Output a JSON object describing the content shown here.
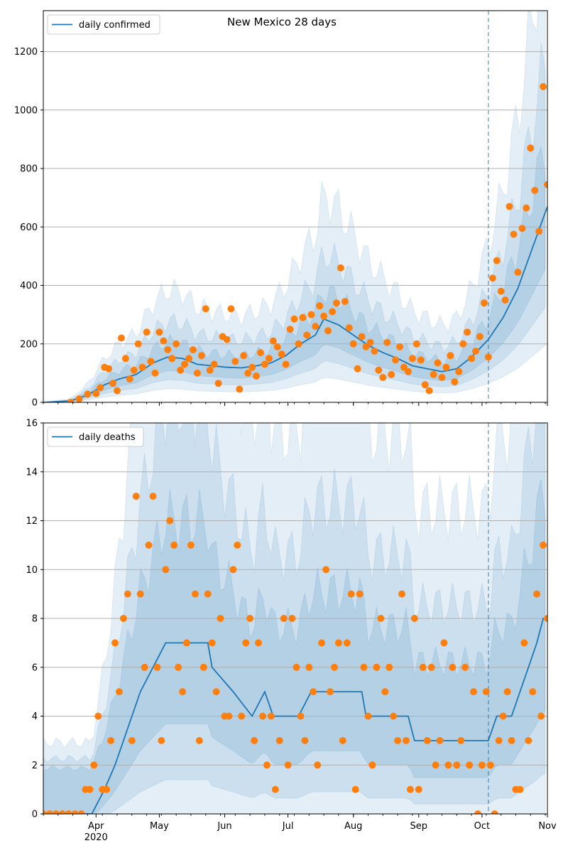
{
  "title": "New Mexico 28 days",
  "colors": {
    "line": "#1f77b4",
    "points": "#ff7f0e",
    "band": "#1f77b4",
    "grid": "#b0b0b0",
    "vline": "#1f77b4"
  },
  "x_axis": {
    "start": "2020-03-07",
    "end": "2020-11-01",
    "tick_labels": [
      "Apr",
      "May",
      "Jun",
      "Jul",
      "Aug",
      "Sep",
      "Oct",
      "Nov"
    ],
    "tick_dates": [
      "2020-04-01",
      "2020-05-01",
      "2020-06-01",
      "2020-07-01",
      "2020-08-01",
      "2020-09-01",
      "2020-10-01",
      "2020-11-01"
    ],
    "year_label": "2020",
    "forecast_start": "2020-10-04"
  },
  "chart_data": [
    {
      "type": "line",
      "legend": "daily confirmed",
      "legend_position": "upper-left",
      "ylim": [
        0,
        1340
      ],
      "yticks": [
        0,
        200,
        400,
        600,
        800,
        1000,
        1200
      ],
      "grid": "horizontal",
      "median": [
        [
          "2020-03-07",
          0
        ],
        [
          "2020-03-20",
          5
        ],
        [
          "2020-03-28",
          25
        ],
        [
          "2020-04-05",
          60
        ],
        [
          "2020-04-12",
          80
        ],
        [
          "2020-04-20",
          95
        ],
        [
          "2020-04-28",
          135
        ],
        [
          "2020-05-05",
          155
        ],
        [
          "2020-05-12",
          150
        ],
        [
          "2020-05-19",
          130
        ],
        [
          "2020-05-26",
          125
        ],
        [
          "2020-06-02",
          120
        ],
        [
          "2020-06-09",
          118
        ],
        [
          "2020-06-16",
          125
        ],
        [
          "2020-06-23",
          135
        ],
        [
          "2020-06-30",
          160
        ],
        [
          "2020-07-07",
          200
        ],
        [
          "2020-07-14",
          230
        ],
        [
          "2020-07-18",
          285
        ],
        [
          "2020-07-25",
          265
        ],
        [
          "2020-08-01",
          230
        ],
        [
          "2020-08-08",
          195
        ],
        [
          "2020-08-15",
          170
        ],
        [
          "2020-08-22",
          150
        ],
        [
          "2020-08-29",
          125
        ],
        [
          "2020-09-05",
          115
        ],
        [
          "2020-09-12",
          105
        ],
        [
          "2020-09-19",
          115
        ],
        [
          "2020-09-26",
          155
        ],
        [
          "2020-10-04",
          215
        ],
        [
          "2020-10-11",
          290
        ],
        [
          "2020-10-18",
          390
        ],
        [
          "2020-10-25",
          530
        ],
        [
          "2020-11-01",
          670
        ]
      ],
      "points": [
        [
          "2020-03-20",
          0
        ],
        [
          "2020-03-24",
          12
        ],
        [
          "2020-03-28",
          28
        ],
        [
          "2020-04-01",
          30
        ],
        [
          "2020-04-03",
          50
        ],
        [
          "2020-04-05",
          120
        ],
        [
          "2020-04-07",
          115
        ],
        [
          "2020-04-09",
          65
        ],
        [
          "2020-04-11",
          40
        ],
        [
          "2020-04-13",
          220
        ],
        [
          "2020-04-15",
          150
        ],
        [
          "2020-04-17",
          80
        ],
        [
          "2020-04-19",
          110
        ],
        [
          "2020-04-21",
          200
        ],
        [
          "2020-04-23",
          120
        ],
        [
          "2020-04-25",
          240
        ],
        [
          "2020-04-27",
          140
        ],
        [
          "2020-04-29",
          100
        ],
        [
          "2020-05-01",
          240
        ],
        [
          "2020-05-03",
          210
        ],
        [
          "2020-05-05",
          180
        ],
        [
          "2020-05-07",
          150
        ],
        [
          "2020-05-09",
          200
        ],
        [
          "2020-05-11",
          110
        ],
        [
          "2020-05-13",
          130
        ],
        [
          "2020-05-15",
          150
        ],
        [
          "2020-05-17",
          180
        ],
        [
          "2020-05-19",
          100
        ],
        [
          "2020-05-21",
          160
        ],
        [
          "2020-05-23",
          320
        ],
        [
          "2020-05-25",
          110
        ],
        [
          "2020-05-27",
          130
        ],
        [
          "2020-05-29",
          65
        ],
        [
          "2020-05-31",
          225
        ],
        [
          "2020-06-02",
          215
        ],
        [
          "2020-06-04",
          320
        ],
        [
          "2020-06-06",
          140
        ],
        [
          "2020-06-08",
          45
        ],
        [
          "2020-06-10",
          160
        ],
        [
          "2020-06-12",
          100
        ],
        [
          "2020-06-14",
          120
        ],
        [
          "2020-06-16",
          90
        ],
        [
          "2020-06-18",
          170
        ],
        [
          "2020-06-20",
          130
        ],
        [
          "2020-06-22",
          150
        ],
        [
          "2020-06-24",
          210
        ],
        [
          "2020-06-26",
          190
        ],
        [
          "2020-06-28",
          165
        ],
        [
          "2020-06-30",
          130
        ],
        [
          "2020-07-02",
          250
        ],
        [
          "2020-07-04",
          285
        ],
        [
          "2020-07-06",
          200
        ],
        [
          "2020-07-08",
          290
        ],
        [
          "2020-07-10",
          230
        ],
        [
          "2020-07-12",
          300
        ],
        [
          "2020-07-14",
          260
        ],
        [
          "2020-07-16",
          330
        ],
        [
          "2020-07-18",
          295
        ],
        [
          "2020-07-20",
          245
        ],
        [
          "2020-07-22",
          310
        ],
        [
          "2020-07-24",
          340
        ],
        [
          "2020-07-26",
          460
        ],
        [
          "2020-07-28",
          345
        ],
        [
          "2020-07-30",
          255
        ],
        [
          "2020-08-01",
          200
        ],
        [
          "2020-08-03",
          115
        ],
        [
          "2020-08-05",
          225
        ],
        [
          "2020-08-07",
          190
        ],
        [
          "2020-08-09",
          205
        ],
        [
          "2020-08-11",
          175
        ],
        [
          "2020-08-13",
          110
        ],
        [
          "2020-08-15",
          85
        ],
        [
          "2020-08-17",
          205
        ],
        [
          "2020-08-19",
          95
        ],
        [
          "2020-08-21",
          145
        ],
        [
          "2020-08-23",
          190
        ],
        [
          "2020-08-25",
          120
        ],
        [
          "2020-08-27",
          105
        ],
        [
          "2020-08-29",
          150
        ],
        [
          "2020-08-31",
          200
        ],
        [
          "2020-09-02",
          145
        ],
        [
          "2020-09-04",
          60
        ],
        [
          "2020-09-06",
          40
        ],
        [
          "2020-09-08",
          95
        ],
        [
          "2020-09-10",
          135
        ],
        [
          "2020-09-12",
          85
        ],
        [
          "2020-09-14",
          120
        ],
        [
          "2020-09-16",
          160
        ],
        [
          "2020-09-18",
          70
        ],
        [
          "2020-09-20",
          105
        ],
        [
          "2020-09-22",
          200
        ],
        [
          "2020-09-24",
          240
        ],
        [
          "2020-09-26",
          150
        ],
        [
          "2020-09-28",
          175
        ],
        [
          "2020-09-30",
          225
        ],
        [
          "2020-10-02",
          340
        ],
        [
          "2020-10-04",
          155
        ],
        [
          "2020-10-06",
          425
        ],
        [
          "2020-10-08",
          485
        ],
        [
          "2020-10-10",
          380
        ],
        [
          "2020-10-12",
          350
        ],
        [
          "2020-10-14",
          670
        ],
        [
          "2020-10-16",
          575
        ],
        [
          "2020-10-18",
          445
        ],
        [
          "2020-10-20",
          595
        ],
        [
          "2020-10-22",
          665
        ],
        [
          "2020-10-24",
          870
        ],
        [
          "2020-10-26",
          725
        ],
        [
          "2020-10-28",
          585
        ],
        [
          "2020-10-30",
          1080
        ],
        [
          "2020-11-01",
          745
        ]
      ]
    },
    {
      "type": "line",
      "legend": "daily deaths",
      "legend_position": "upper-left",
      "ylim": [
        0,
        16
      ],
      "yticks": [
        0,
        2,
        4,
        6,
        8,
        10,
        12,
        14,
        16
      ],
      "grid": "horizontal",
      "median": [
        [
          "2020-03-07",
          0
        ],
        [
          "2020-03-30",
          0
        ],
        [
          "2020-04-05",
          1
        ],
        [
          "2020-04-10",
          2
        ],
        [
          "2020-04-14",
          3
        ],
        [
          "2020-04-18",
          4
        ],
        [
          "2020-04-22",
          5
        ],
        [
          "2020-04-28",
          6
        ],
        [
          "2020-05-04",
          7
        ],
        [
          "2020-05-24",
          7
        ],
        [
          "2020-05-26",
          6
        ],
        [
          "2020-06-05",
          5
        ],
        [
          "2020-06-14",
          4
        ],
        [
          "2020-06-20",
          5
        ],
        [
          "2020-06-24",
          4
        ],
        [
          "2020-07-06",
          4
        ],
        [
          "2020-07-12",
          5
        ],
        [
          "2020-07-19",
          5
        ],
        [
          "2020-08-05",
          5
        ],
        [
          "2020-08-07",
          4
        ],
        [
          "2020-08-27",
          4
        ],
        [
          "2020-08-30",
          3
        ],
        [
          "2020-10-04",
          3
        ],
        [
          "2020-10-08",
          4
        ],
        [
          "2020-10-15",
          4
        ],
        [
          "2020-10-19",
          5
        ],
        [
          "2020-10-23",
          6
        ],
        [
          "2020-10-27",
          7
        ],
        [
          "2020-10-30",
          8
        ],
        [
          "2020-11-01",
          8
        ]
      ],
      "points": [
        [
          "2020-03-07",
          0
        ],
        [
          "2020-03-10",
          0
        ],
        [
          "2020-03-13",
          0
        ],
        [
          "2020-03-16",
          0
        ],
        [
          "2020-03-19",
          0
        ],
        [
          "2020-03-22",
          0
        ],
        [
          "2020-03-25",
          0
        ],
        [
          "2020-03-27",
          1
        ],
        [
          "2020-03-29",
          1
        ],
        [
          "2020-03-31",
          2
        ],
        [
          "2020-04-02",
          4
        ],
        [
          "2020-04-04",
          1
        ],
        [
          "2020-04-06",
          1
        ],
        [
          "2020-04-08",
          3
        ],
        [
          "2020-04-10",
          7
        ],
        [
          "2020-04-12",
          5
        ],
        [
          "2020-04-14",
          8
        ],
        [
          "2020-04-16",
          9
        ],
        [
          "2020-04-18",
          3
        ],
        [
          "2020-04-20",
          13
        ],
        [
          "2020-04-22",
          9
        ],
        [
          "2020-04-24",
          6
        ],
        [
          "2020-04-26",
          11
        ],
        [
          "2020-04-28",
          13
        ],
        [
          "2020-04-30",
          6
        ],
        [
          "2020-05-02",
          3
        ],
        [
          "2020-05-04",
          10
        ],
        [
          "2020-05-06",
          12
        ],
        [
          "2020-05-08",
          11
        ],
        [
          "2020-05-10",
          6
        ],
        [
          "2020-05-12",
          5
        ],
        [
          "2020-05-14",
          7
        ],
        [
          "2020-05-16",
          11
        ],
        [
          "2020-05-18",
          9
        ],
        [
          "2020-05-20",
          3
        ],
        [
          "2020-05-22",
          6
        ],
        [
          "2020-05-24",
          9
        ],
        [
          "2020-05-26",
          7
        ],
        [
          "2020-05-28",
          5
        ],
        [
          "2020-05-30",
          8
        ],
        [
          "2020-06-01",
          4
        ],
        [
          "2020-06-03",
          4
        ],
        [
          "2020-06-05",
          10
        ],
        [
          "2020-06-07",
          11
        ],
        [
          "2020-06-09",
          4
        ],
        [
          "2020-06-11",
          7
        ],
        [
          "2020-06-13",
          8
        ],
        [
          "2020-06-15",
          3
        ],
        [
          "2020-06-17",
          7
        ],
        [
          "2020-06-19",
          4
        ],
        [
          "2020-06-21",
          2
        ],
        [
          "2020-06-23",
          4
        ],
        [
          "2020-06-25",
          1
        ],
        [
          "2020-06-27",
          3
        ],
        [
          "2020-06-29",
          8
        ],
        [
          "2020-07-01",
          2
        ],
        [
          "2020-07-03",
          8
        ],
        [
          "2020-07-05",
          6
        ],
        [
          "2020-07-07",
          4
        ],
        [
          "2020-07-09",
          3
        ],
        [
          "2020-07-11",
          6
        ],
        [
          "2020-07-13",
          5
        ],
        [
          "2020-07-15",
          2
        ],
        [
          "2020-07-17",
          7
        ],
        [
          "2020-07-19",
          10
        ],
        [
          "2020-07-21",
          5
        ],
        [
          "2020-07-23",
          6
        ],
        [
          "2020-07-25",
          7
        ],
        [
          "2020-07-27",
          3
        ],
        [
          "2020-07-29",
          7
        ],
        [
          "2020-07-31",
          9
        ],
        [
          "2020-08-02",
          1
        ],
        [
          "2020-08-04",
          9
        ],
        [
          "2020-08-06",
          6
        ],
        [
          "2020-08-08",
          4
        ],
        [
          "2020-08-10",
          2
        ],
        [
          "2020-08-12",
          6
        ],
        [
          "2020-08-14",
          8
        ],
        [
          "2020-08-16",
          5
        ],
        [
          "2020-08-18",
          6
        ],
        [
          "2020-08-20",
          4
        ],
        [
          "2020-08-22",
          3
        ],
        [
          "2020-08-24",
          9
        ],
        [
          "2020-08-26",
          3
        ],
        [
          "2020-08-28",
          1
        ],
        [
          "2020-08-30",
          8
        ],
        [
          "2020-09-01",
          1
        ],
        [
          "2020-09-03",
          6
        ],
        [
          "2020-09-05",
          3
        ],
        [
          "2020-09-07",
          6
        ],
        [
          "2020-09-09",
          2
        ],
        [
          "2020-09-11",
          3
        ],
        [
          "2020-09-13",
          7
        ],
        [
          "2020-09-15",
          2
        ],
        [
          "2020-09-17",
          6
        ],
        [
          "2020-09-19",
          2
        ],
        [
          "2020-09-21",
          3
        ],
        [
          "2020-09-23",
          6
        ],
        [
          "2020-09-25",
          2
        ],
        [
          "2020-09-27",
          5
        ],
        [
          "2020-09-29",
          0
        ],
        [
          "2020-10-01",
          2
        ],
        [
          "2020-10-03",
          5
        ],
        [
          "2020-10-05",
          2
        ],
        [
          "2020-10-07",
          0
        ],
        [
          "2020-10-09",
          3
        ],
        [
          "2020-10-11",
          4
        ],
        [
          "2020-10-13",
          5
        ],
        [
          "2020-10-15",
          3
        ],
        [
          "2020-10-17",
          1
        ],
        [
          "2020-10-19",
          1
        ],
        [
          "2020-10-21",
          7
        ],
        [
          "2020-10-23",
          3
        ],
        [
          "2020-10-25",
          5
        ],
        [
          "2020-10-27",
          9
        ],
        [
          "2020-10-29",
          4
        ],
        [
          "2020-10-30",
          11
        ],
        [
          "2020-11-01",
          8
        ]
      ]
    }
  ]
}
